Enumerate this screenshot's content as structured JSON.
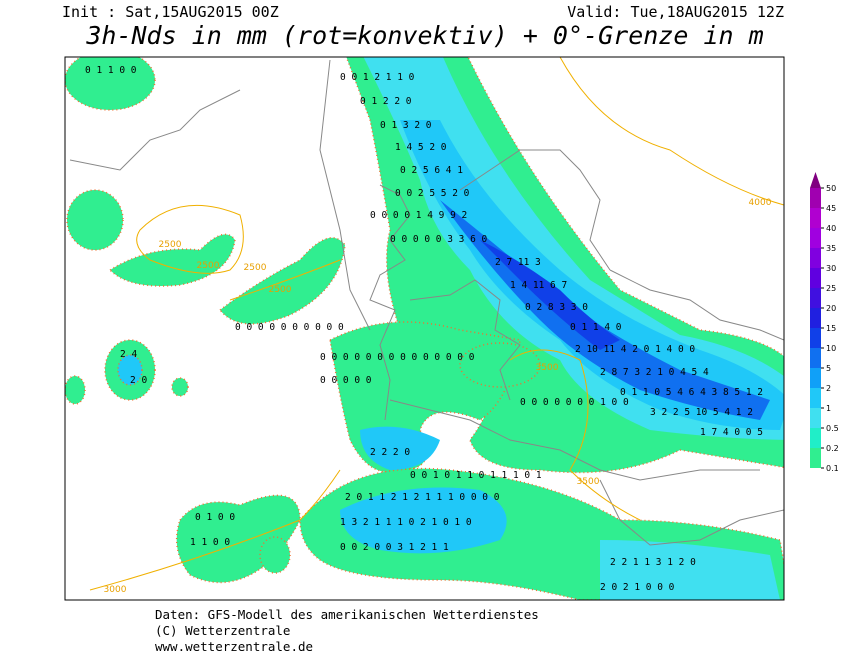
{
  "header": {
    "init": "Init : Sat,15AUG2015 00Z",
    "valid": "Valid: Tue,18AUG2015 12Z",
    "title": "3h-Nds in mm (rot=konvektiv) + 0°-Grenze in m"
  },
  "colorbar": {
    "ticks": [
      0.1,
      0.2,
      0.5,
      1,
      2,
      5,
      10,
      15,
      20,
      25,
      30,
      35,
      40,
      45,
      50
    ],
    "colors": [
      "#30ee90",
      "#20eec8",
      "#40e0f0",
      "#20c8f8",
      "#10a0f8",
      "#1070f0",
      "#1040e8",
      "#2020e0",
      "#4010e0",
      "#6000e0",
      "#8000e0",
      "#a000e0",
      "#b000d0",
      "#a000b0",
      "#800080"
    ]
  },
  "contour_labels": [
    "2500",
    "2500",
    "2500",
    "2500",
    "3500",
    "3500",
    "4000",
    "3000"
  ],
  "map_labels": [
    "0 1 1 0 0",
    "0 0 1 2 1 1 0",
    "0 1 2 2 0",
    "0 1 3 2 0",
    "1 4 5 2 0",
    "0 2 5 6 4 1",
    "0 0 2 5 5 2 0",
    "0 0 0 0 1 4 9 9 2",
    "0 0 0 0 0 3 3 6 0",
    "2 7 11 3",
    "1 4 11 6 7",
    "0 2 8 3 3 0",
    "0 1 1 4 0",
    "2 10 11 4 2 0 1 4 0 0",
    "2 8 7 3 2 1 0 4 5 4",
    "0 1 1 0 5 4 6 4 3 8 5 1 2",
    "3 2 2 5 10 5 4 1 2",
    "1 7 4 0 0 5",
    "0 0 0 0 0 0 0 0 0 0",
    "0 0 0 0 0 0 0 0 0 0 0 0 0 0",
    "0 0 0 0 0",
    "0 0 0 0 0 0 0 1 0 0",
    "2 2 2 0",
    "0 0 1 0 1 1 0 1 1 1 0 1",
    "2 0 1 1 2 1 2 1 1 1 0 0 0 0",
    "1 3 2 1 1 1 0 2 1 0 1 0",
    "0 0 2 0 0 3 1 2 1 1",
    "2 4",
    "2 0",
    "0 1 0 0",
    "1 1 0 0",
    "2 2 1 1 3 1 2 0",
    "2 0 2 1 0 0 0"
  ],
  "footer": [
    "Daten: GFS-Modell des amerikanischen Wetterdienstes",
    "(C) Wetterzentrale",
    "www.wetterzentrale.de"
  ]
}
